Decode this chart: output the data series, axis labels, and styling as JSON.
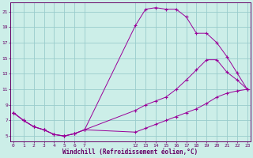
{
  "xlabel": "Windchill (Refroidissement éolien,°C)",
  "bg_color": "#cceee8",
  "grid_color": "#99cccc",
  "line_color": "#990099",
  "spine_color": "#660066",
  "line1_x": [
    0,
    1,
    2,
    3,
    4,
    5,
    6,
    7,
    12,
    13,
    14,
    15,
    16,
    17,
    18,
    19,
    20,
    21,
    22,
    23
  ],
  "line1_y": [
    8.0,
    7.0,
    6.2,
    5.8,
    5.2,
    5.0,
    5.3,
    5.8,
    19.2,
    21.3,
    21.5,
    21.3,
    21.3,
    20.3,
    18.2,
    18.2,
    17.0,
    15.2,
    13.1,
    11.0
  ],
  "line2_x": [
    0,
    1,
    2,
    3,
    4,
    5,
    6,
    7,
    12,
    13,
    14,
    15,
    16,
    17,
    18,
    19,
    20,
    21,
    22,
    23
  ],
  "line2_y": [
    8.0,
    7.0,
    6.2,
    5.8,
    5.2,
    5.0,
    5.3,
    5.8,
    8.3,
    9.0,
    9.5,
    10.0,
    11.0,
    12.2,
    13.5,
    14.8,
    14.8,
    13.2,
    12.2,
    11.0
  ],
  "line3_x": [
    0,
    1,
    2,
    3,
    4,
    5,
    6,
    7,
    12,
    13,
    14,
    15,
    16,
    17,
    18,
    19,
    20,
    21,
    22,
    23
  ],
  "line3_y": [
    8.0,
    7.0,
    6.2,
    5.8,
    5.2,
    5.0,
    5.3,
    5.8,
    5.5,
    6.0,
    6.5,
    7.0,
    7.5,
    8.0,
    8.5,
    9.2,
    10.0,
    10.5,
    10.8,
    11.0
  ],
  "xtick_labels": [
    "0",
    "1",
    "2",
    "3",
    "4",
    "5",
    "6",
    "7",
    "12",
    "13",
    "14",
    "15",
    "16",
    "17",
    "18",
    "19",
    "20",
    "21",
    "22",
    "23"
  ],
  "xtick_positions": [
    0,
    1,
    2,
    3,
    4,
    5,
    6,
    7,
    12,
    13,
    14,
    15,
    16,
    17,
    18,
    19,
    20,
    21,
    22,
    23
  ],
  "yticks": [
    5,
    7,
    9,
    11,
    13,
    15,
    17,
    19,
    21
  ],
  "xlim": [
    -0.3,
    23.3
  ],
  "ylim": [
    4.3,
    22.2
  ]
}
